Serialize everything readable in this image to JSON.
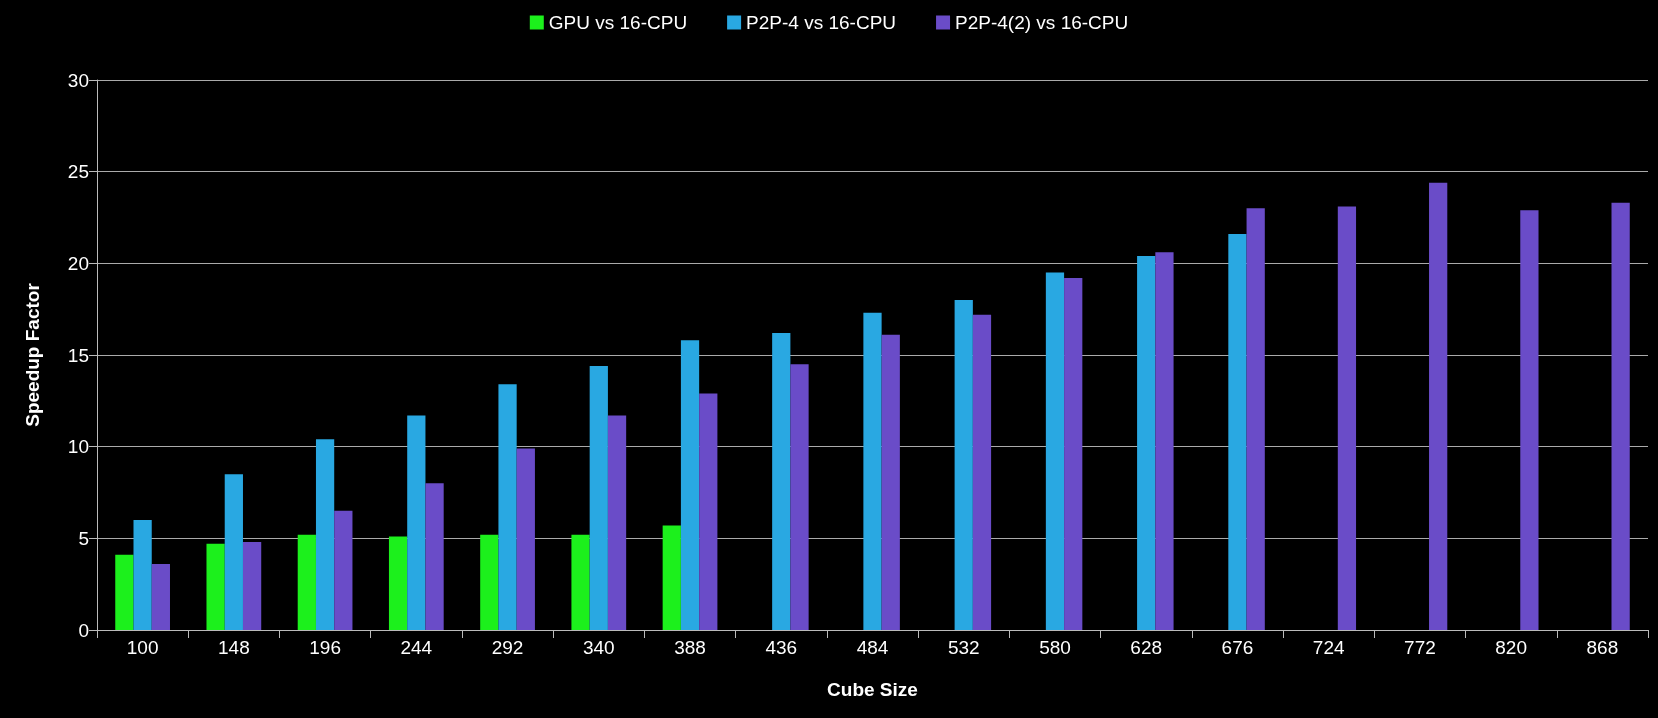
{
  "chart_data": {
    "type": "bar",
    "xlabel": "Cube Size",
    "ylabel": "Speedup Factor",
    "categories": [
      "100",
      "148",
      "196",
      "244",
      "292",
      "340",
      "388",
      "436",
      "484",
      "532",
      "580",
      "628",
      "676",
      "724",
      "772",
      "820",
      "868"
    ],
    "series": [
      {
        "name": "GPU vs 16-CPU",
        "color": "#1cf01c",
        "values": [
          4.1,
          4.7,
          5.2,
          5.1,
          5.2,
          5.2,
          5.7,
          null,
          null,
          null,
          null,
          null,
          null,
          null,
          null,
          null,
          null
        ]
      },
      {
        "name": "P2P-4 vs 16-CPU",
        "color": "#29a8e2",
        "values": [
          6.0,
          8.5,
          10.4,
          11.7,
          13.4,
          14.4,
          15.8,
          16.2,
          17.3,
          18.0,
          19.5,
          20.4,
          21.6,
          null,
          null,
          null,
          null
        ]
      },
      {
        "name": "P2P-4(2) vs 16-CPU",
        "color": "#6a4cc8",
        "values": [
          3.6,
          4.8,
          6.5,
          8.0,
          9.9,
          11.7,
          12.9,
          14.5,
          16.1,
          17.2,
          19.2,
          20.6,
          23.0,
          23.1,
          24.4,
          22.9,
          23.3
        ]
      }
    ],
    "ylim": [
      0,
      30
    ],
    "yticks": [
      0,
      5,
      10,
      15,
      20,
      25,
      30
    ],
    "grid": "y",
    "legend": "top"
  }
}
